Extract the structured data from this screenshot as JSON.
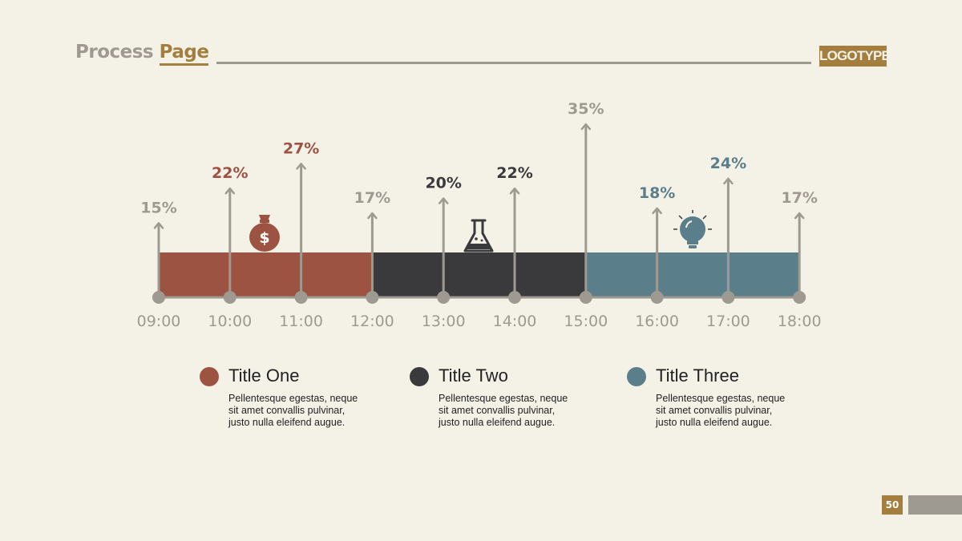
{
  "header": {
    "title_part1": "Process",
    "title_part2": "Page",
    "logo": "LOGOTYPE"
  },
  "page_number": "50",
  "colors": {
    "accent": "#a47e3e",
    "gray": "#9e9a92",
    "red": "#9c5341",
    "dark": "#3a3a3c",
    "teal": "#5a7f8b",
    "background": "#f4f1e7"
  },
  "legend": [
    {
      "title": "Title One",
      "desc": "Pellentesque egestas, neque sit amet convallis pulvinar, justo nulla eleifend augue.",
      "color": "#9c5341"
    },
    {
      "title": "Title Two",
      "desc": "Pellentesque egestas, neque sit amet convallis pulvinar, justo nulla eleifend augue.",
      "color": "#3a3a3c"
    },
    {
      "title": "Title Three",
      "desc": "Pellentesque egestas, neque sit amet convallis pulvinar, justo nulla eleifend augue.",
      "color": "#5a7f8b"
    }
  ],
  "chart_data": {
    "type": "bar",
    "categories": [
      "09:00",
      "10:00",
      "11:00",
      "12:00",
      "13:00",
      "14:00",
      "15:00",
      "16:00",
      "17:00",
      "18:00"
    ],
    "values": [
      15,
      22,
      27,
      17,
      20,
      22,
      35,
      18,
      24,
      17
    ],
    "value_labels": [
      "15%",
      "22%",
      "27%",
      "17%",
      "20%",
      "22%",
      "35%",
      "18%",
      "24%",
      "17%"
    ],
    "label_colors": [
      "#9e9a92",
      "#9c5341",
      "#9c5341",
      "#9e9a92",
      "#3a3a3c",
      "#3a3a3c",
      "#9e9a92",
      "#5a7f8b",
      "#5a7f8b",
      "#9e9a92"
    ],
    "segments": [
      {
        "from": "09:00",
        "to": "12:00",
        "color": "#9c5341",
        "icon": "money-bag-icon"
      },
      {
        "from": "12:00",
        "to": "15:00",
        "color": "#3a3a3c",
        "icon": "flask-icon"
      },
      {
        "from": "15:00",
        "to": "18:00",
        "color": "#5a7f8b",
        "icon": "lightbulb-icon"
      }
    ],
    "ylim": [
      0,
      35
    ],
    "grid": false
  }
}
